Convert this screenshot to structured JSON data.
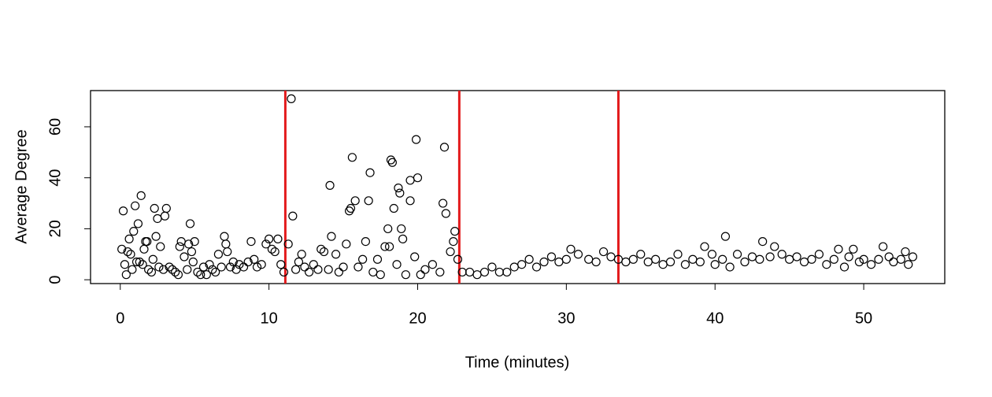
{
  "chart_data": {
    "type": "scatter",
    "xlabel": "Time (minutes)",
    "ylabel": "Average Degree",
    "xlim": [
      -2.0,
      55.45
    ],
    "ylim": [
      -1.5,
      74.2
    ],
    "xticks": [
      0,
      10,
      20,
      30,
      40,
      50
    ],
    "yticks": [
      0,
      20,
      40,
      60
    ],
    "marker_color": "#000000",
    "vline_color": "#e31a1c",
    "vlines": [
      11.1,
      22.8,
      33.5
    ],
    "x": [
      0.1,
      0.2,
      0.3,
      0.4,
      0.5,
      0.6,
      0.7,
      0.8,
      0.9,
      1.0,
      1.1,
      1.2,
      1.3,
      1.4,
      1.5,
      1.6,
      1.7,
      1.8,
      1.9,
      2.1,
      2.2,
      2.3,
      2.4,
      2.5,
      2.6,
      2.7,
      2.9,
      3.0,
      3.1,
      3.3,
      3.5,
      3.7,
      3.9,
      4.0,
      4.1,
      4.3,
      4.5,
      4.6,
      4.7,
      4.8,
      4.9,
      5.0,
      5.2,
      5.4,
      5.6,
      5.8,
      6.0,
      6.2,
      6.4,
      6.6,
      6.8,
      7.0,
      7.1,
      7.2,
      7.4,
      7.6,
      7.8,
      8.0,
      8.3,
      8.6,
      8.8,
      9.0,
      9.2,
      9.5,
      9.8,
      10.0,
      10.2,
      10.4,
      10.6,
      10.8,
      11.0,
      11.3,
      11.5,
      11.6,
      11.8,
      12.0,
      12.2,
      12.4,
      12.7,
      13.0,
      13.3,
      13.5,
      13.7,
      14.0,
      14.1,
      14.2,
      14.5,
      14.7,
      15.0,
      15.2,
      15.4,
      15.5,
      15.6,
      15.8,
      16.0,
      16.3,
      16.5,
      16.7,
      16.8,
      17.0,
      17.3,
      17.5,
      17.8,
      18.0,
      18.1,
      18.2,
      18.3,
      18.4,
      18.6,
      18.7,
      18.8,
      18.9,
      19.0,
      19.2,
      19.5,
      19.5,
      19.8,
      19.9,
      20.0,
      20.2,
      20.5,
      21.0,
      21.5,
      21.7,
      21.8,
      21.9,
      22.2,
      22.4,
      22.5,
      22.7,
      23.0,
      23.5,
      24.0,
      24.5,
      25.0,
      25.5,
      26.0,
      26.5,
      27.0,
      27.5,
      28.0,
      28.5,
      29.0,
      29.5,
      30.0,
      30.3,
      30.8,
      31.5,
      32.0,
      32.5,
      33.0,
      33.5,
      34.0,
      34.5,
      35.0,
      35.5,
      36.0,
      36.5,
      37.0,
      37.5,
      38.0,
      38.5,
      39.0,
      39.3,
      39.8,
      40.0,
      40.5,
      40.7,
      41.0,
      41.5,
      42.0,
      42.5,
      43.0,
      43.2,
      43.7,
      44.0,
      44.5,
      45.0,
      45.5,
      46.0,
      46.5,
      47.0,
      47.5,
      48.0,
      48.3,
      48.7,
      49.0,
      49.3,
      49.7,
      50.0,
      50.5,
      51.0,
      51.3,
      51.7,
      52.0,
      52.5,
      52.8,
      53.0,
      53.3
    ],
    "values": [
      12,
      27,
      6,
      2,
      11,
      16,
      10,
      4,
      19,
      29,
      7,
      22,
      7,
      33,
      6,
      12,
      15,
      15,
      4,
      3,
      8,
      28,
      17,
      24,
      5,
      13,
      4,
      25,
      28,
      5,
      4,
      3,
      2,
      13,
      15,
      9,
      4,
      14,
      22,
      11,
      7,
      15,
      3,
      2,
      5,
      2,
      6,
      4,
      3,
      10,
      5,
      17,
      14,
      11,
      5,
      7,
      4,
      6,
      5,
      7,
      15,
      8,
      5,
      6,
      14,
      16,
      12,
      11,
      16,
      6,
      3,
      14,
      71,
      25,
      4,
      7,
      10,
      5,
      3,
      6,
      4,
      12,
      11,
      4,
      37,
      17,
      10,
      3,
      5,
      14,
      27,
      28,
      48,
      31,
      5,
      8,
      15,
      31,
      42,
      3,
      8,
      2,
      13,
      20,
      13,
      47,
      46,
      28,
      6,
      36,
      34,
      20,
      16,
      2,
      39,
      31,
      9,
      55,
      40,
      2,
      4,
      6,
      3,
      30,
      52,
      26,
      11,
      15,
      19,
      8,
      3,
      3,
      2,
      3,
      5,
      3,
      3,
      5,
      6,
      8,
      5,
      7,
      9,
      7,
      8,
      12,
      10,
      8,
      7,
      11,
      9,
      8,
      7,
      8,
      10,
      7,
      8,
      6,
      7,
      10,
      6,
      8,
      7,
      13,
      10,
      6,
      8,
      17,
      5,
      10,
      7,
      9,
      8,
      15,
      9,
      13,
      10,
      8,
      9,
      7,
      8,
      10,
      6,
      8,
      12,
      5,
      9,
      12,
      7,
      8,
      6,
      8,
      13,
      9,
      7,
      8,
      11,
      6,
      9
    ]
  }
}
